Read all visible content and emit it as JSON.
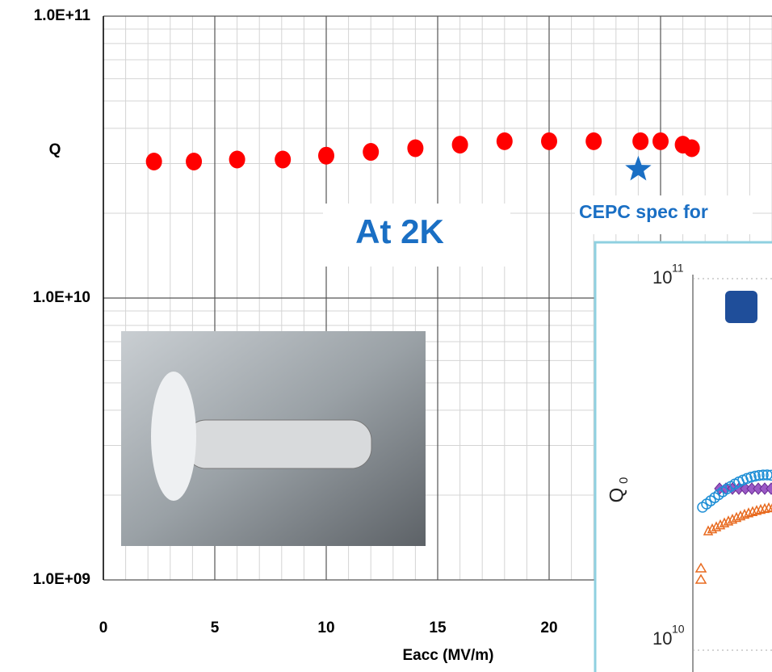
{
  "chart_data": {
    "type": "scatter",
    "x_label": "Eacc (MV/m)",
    "y_label": "Q",
    "x": [
      2.27,
      4.06,
      6.0,
      8.05,
      10,
      12,
      14,
      16,
      18,
      20,
      22,
      24.1,
      25,
      26,
      26.4
    ],
    "values": [
      30500000000,
      30500000000,
      31000000000,
      31000000000,
      32000000000,
      33000000000,
      34000000000,
      35000000000,
      36000000000,
      36000000000,
      36000000000,
      36000000000,
      36000000000,
      35000000000,
      34000000000
    ],
    "color": "#ff0000",
    "xlim": [
      0,
      30
    ],
    "xticks": [
      0,
      5,
      10,
      15,
      20,
      25
    ],
    "ylim": [
      1000000000,
      100000000000
    ],
    "log_y": true,
    "yticks": [
      {
        "value": 1000000000,
        "label": "1.0E+09"
      },
      {
        "value": 10000000000,
        "label": "1.0E+10"
      },
      {
        "value": 100000000000,
        "label": "1.0E+11"
      }
    ],
    "grid": true,
    "minor_grid": true,
    "spec": {
      "text": "CEPC spec for",
      "x": 24,
      "y": 28600000000,
      "color": "#1a6fc4"
    },
    "annotation": "At 2K",
    "inset": {
      "y_top": "10",
      "y_top_exp": "11",
      "y_bottom": "10",
      "y_bottom_exp": "10",
      "y_label": "Q",
      "y_label_sub": "0"
    }
  }
}
